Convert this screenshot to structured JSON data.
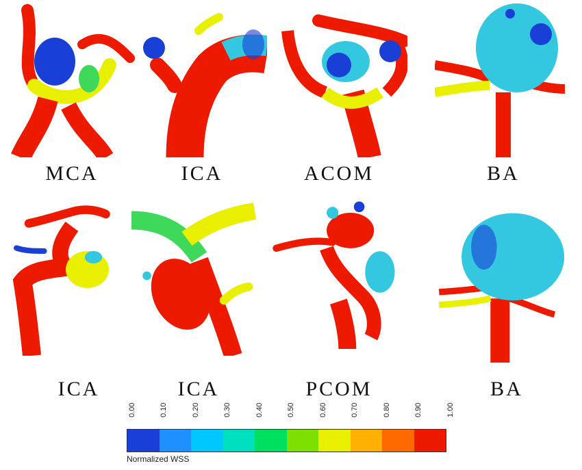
{
  "panels": [
    {
      "label": "MCA"
    },
    {
      "label": "ICA"
    },
    {
      "label": "ACOM"
    },
    {
      "label": "BA"
    },
    {
      "label": "ICA"
    },
    {
      "label": "ICA"
    },
    {
      "label": "PCOM"
    },
    {
      "label": "BA"
    }
  ],
  "colorbar": {
    "title": "Normalized WSS",
    "ticks": [
      "0.00",
      "0.10",
      "0.20",
      "0.30",
      "0.40",
      "0.50",
      "0.60",
      "0.70",
      "0.80",
      "0.90",
      "1.00"
    ],
    "colors": [
      "#1a3fd6",
      "#1e90ff",
      "#00c8ff",
      "#00e0c0",
      "#00e060",
      "#7ee000",
      "#e8f000",
      "#ffb000",
      "#ff6a00",
      "#ee1a00"
    ]
  },
  "palette": {
    "red": "#ee1a00",
    "orange": "#ff8c00",
    "yellow": "#e8f000",
    "green": "#3ed85a",
    "cyan": "#34c8e0",
    "blue": "#1a3fd6",
    "lightblue": "#6fc6e8"
  }
}
